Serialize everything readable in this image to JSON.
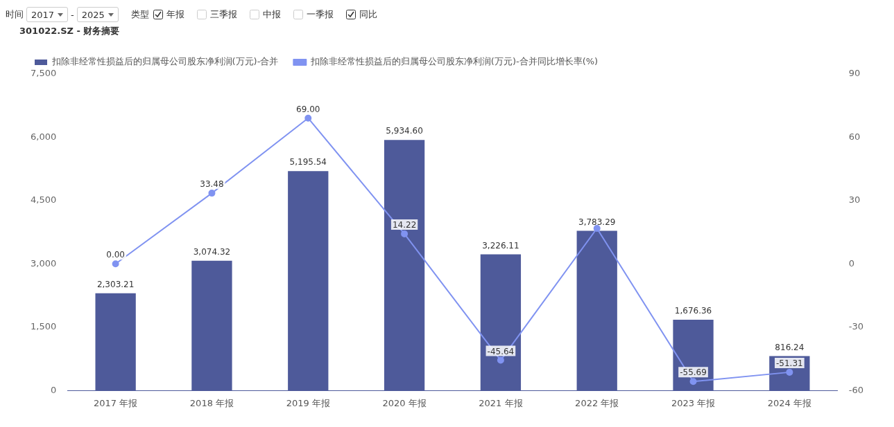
{
  "chart_data": {
    "type": "bar",
    "title": "301022.SZ - 财务摘要",
    "annotations": [
      "时间",
      "2017",
      "-",
      "2025",
      "类型",
      "年报",
      "三季报",
      "中报",
      "一季报",
      "同比"
    ],
    "categories": [
      "2017 年报",
      "2018 年报",
      "2019 年报",
      "2020 年报",
      "2021 年报",
      "2022 年报",
      "2023 年报",
      "2024 年报"
    ],
    "series": [
      {
        "name": "扣除非经常性损益后的归属母公司股东净利润(万元)-合并",
        "color": "#4e5a9a",
        "values": [
          2303.21,
          3074.32,
          5195.54,
          5934.6,
          3226.11,
          3783.29,
          1676.36,
          816.24
        ],
        "value_labels": [
          "2,303.21",
          "3,074.32",
          "5,195.54",
          "5,934.60",
          "3,226.11",
          "3,783.29",
          "1,676.36",
          "816.24"
        ]
      },
      {
        "name": "扣除非经常性损益后的归属母公司股东净利润(万元)-合并同比增长率(%)",
        "type": "line",
        "axis": "y2",
        "color": "#8093f1",
        "values": [
          0.0,
          33.48,
          69.0,
          14.22,
          -45.64,
          16.8,
          -55.69,
          -51.31
        ],
        "value_labels": [
          "0.00",
          "33.48",
          "69.00",
          "14.22",
          "-45.64",
          null,
          "-55.69",
          "-51.31"
        ]
      }
    ],
    "ylim": [
      0,
      7500
    ],
    "yticks": [
      0,
      {
        "value": 1500,
        "label": "1,500"
      },
      {
        "value": 3000,
        "label": "3,000"
      },
      {
        "value": 4500,
        "label": "4,500"
      },
      {
        "value": 6000,
        "label": "6,000"
      },
      {
        "value": 7500,
        "label": "7,500"
      }
    ],
    "y2lim": [
      -60,
      90
    ],
    "y2ticks": [
      -60,
      -30,
      0,
      30,
      60,
      90
    ],
    "grid": false,
    "legend": "top left",
    "marker": "circle"
  }
}
